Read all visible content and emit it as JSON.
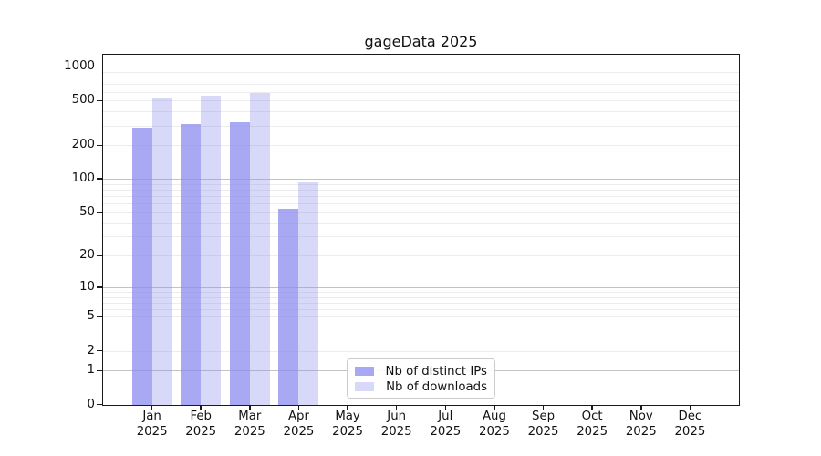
{
  "chart_data": {
    "type": "bar",
    "title": "gageData 2025",
    "categories": [
      "Jan 2025",
      "Feb 2025",
      "Mar 2025",
      "Apr 2025",
      "May 2025",
      "Jun 2025",
      "Jul 2025",
      "Aug 2025",
      "Sep 2025",
      "Oct 2025",
      "Nov 2025",
      "Dec 2025"
    ],
    "series": [
      {
        "name": "Nb of distinct IPs",
        "color": "#8888ee",
        "alpha": 0.73,
        "values": [
          288,
          309,
          320,
          54,
          null,
          null,
          null,
          null,
          null,
          null,
          null,
          null
        ]
      },
      {
        "name": "Nb of downloads",
        "color": "#8888ee",
        "alpha": 0.33,
        "values": [
          532,
          551,
          588,
          93,
          null,
          null,
          null,
          null,
          null,
          null,
          null,
          null
        ]
      }
    ],
    "xlabel": "",
    "ylabel": "",
    "yscale": "log10(1+v)",
    "ylim": [
      0,
      1280
    ],
    "yticks": [
      1000,
      500,
      200,
      100,
      50,
      20,
      10,
      5,
      2,
      1,
      0
    ],
    "minor_gridlines": [
      2,
      3,
      4,
      5,
      6,
      7,
      8,
      9,
      20,
      30,
      40,
      50,
      60,
      70,
      80,
      90,
      200,
      300,
      400,
      500,
      600,
      700,
      800,
      900
    ],
    "major_gridlines": [
      1,
      10,
      100,
      1000
    ],
    "grid": true,
    "legend_position": "inside-bottom-center",
    "colors": {
      "major_grid": "#c3c3c3",
      "minor_grid": "#ececec",
      "spine": "#1a1a1a",
      "text": "#111111",
      "background": "#ffffff"
    }
  }
}
